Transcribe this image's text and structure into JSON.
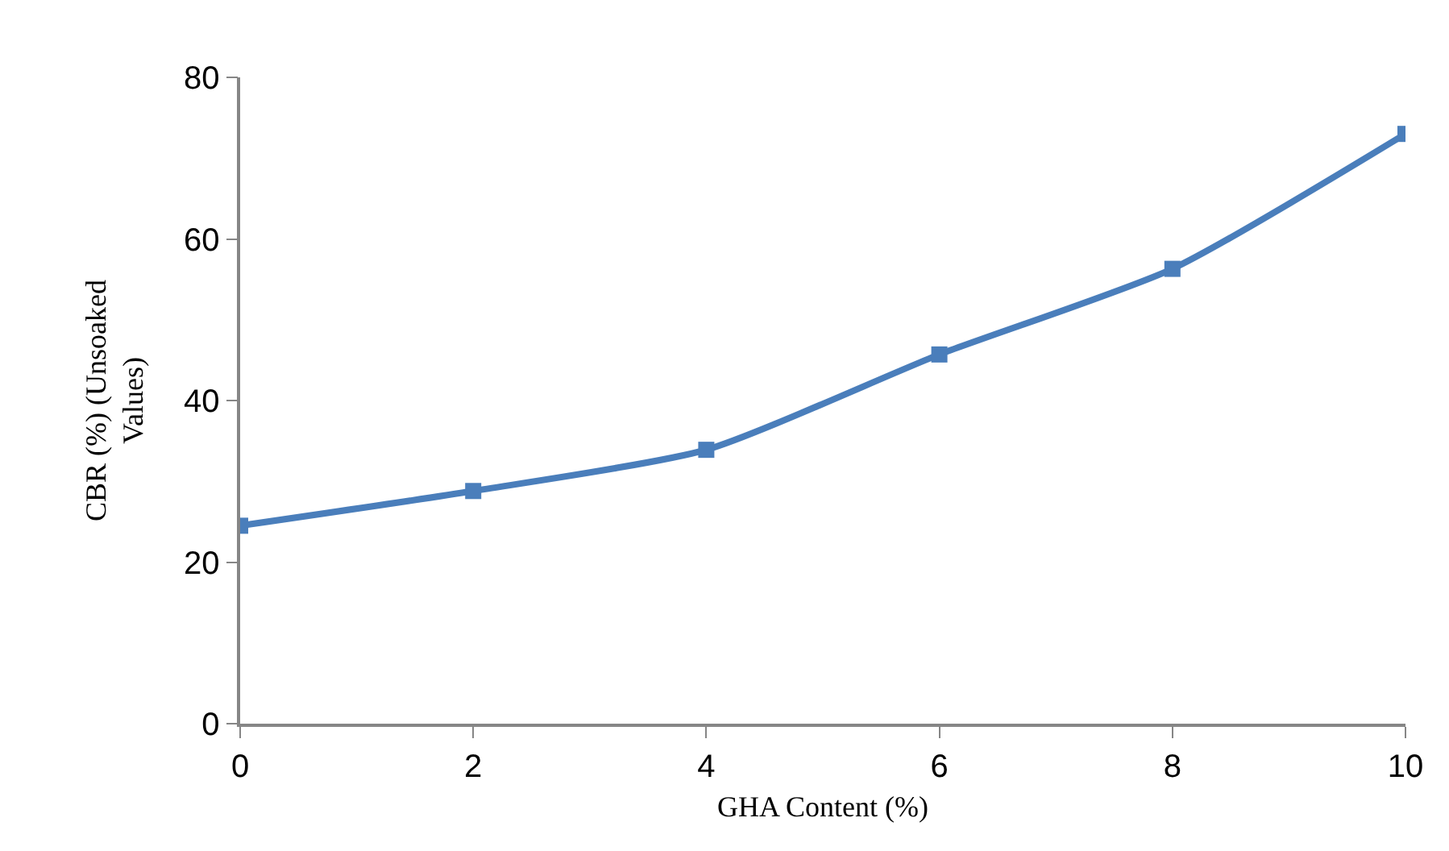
{
  "chart_data": {
    "type": "line",
    "xlabel": "GHA Content (%)",
    "ylabel": "CBR (%) (Unsoaked\nValues)",
    "x": [
      0,
      2,
      4,
      6,
      8,
      10
    ],
    "series": [
      {
        "color": "#4a7ebb",
        "values": [
          24.5,
          28.8,
          33.9,
          45.7,
          56.3,
          73.0
        ]
      }
    ],
    "xlim": [
      0,
      10
    ],
    "xticks": [
      0,
      2,
      4,
      6,
      8,
      10
    ],
    "ylim": [
      0,
      80
    ],
    "yticks": [
      0,
      20,
      40,
      60,
      80
    ],
    "marker": "square",
    "line_style": "solid"
  }
}
